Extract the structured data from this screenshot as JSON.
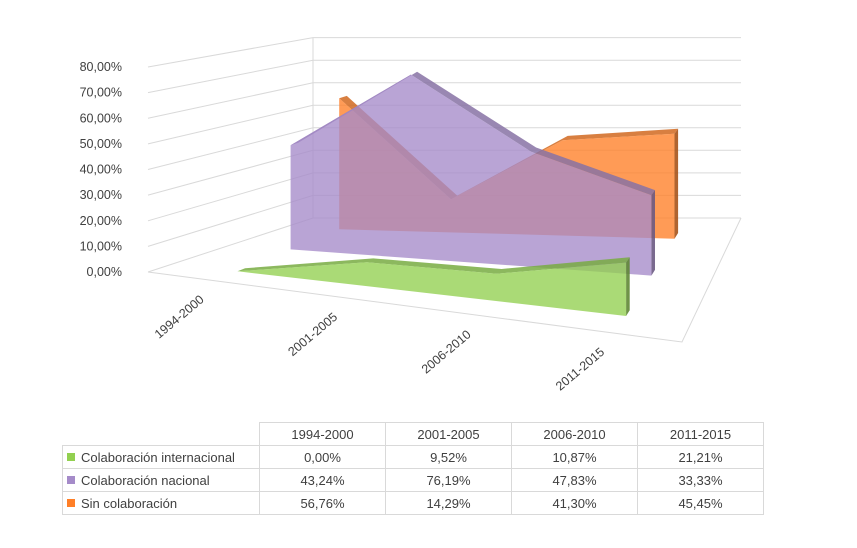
{
  "chart_data": {
    "type": "area",
    "categories": [
      "1994-2000",
      "2001-2005",
      "2006-2010",
      "2011-2015"
    ],
    "y_ticks": [
      "0,00%",
      "10,00%",
      "20,00%",
      "30,00%",
      "40,00%",
      "50,00%",
      "60,00%",
      "70,00%",
      "80,00%"
    ],
    "ylim": [
      0,
      80
    ],
    "grid": true,
    "legend": "data-table",
    "series": [
      {
        "name": "Colaboración internacional",
        "color": "#92d050",
        "values": [
          0.0,
          9.52,
          10.87,
          21.21
        ],
        "labels": [
          "0,00%",
          "9,52%",
          "10,87%",
          "21,21%"
        ]
      },
      {
        "name": "Colaboración nacional",
        "color": "#a58bc9",
        "values": [
          43.24,
          76.19,
          47.83,
          33.33
        ],
        "labels": [
          "43,24%",
          "76,19%",
          "47,83%",
          "33,33%"
        ]
      },
      {
        "name": "Sin colaboración",
        "color": "#ff7f27",
        "values": [
          56.76,
          14.29,
          41.3,
          45.45
        ],
        "labels": [
          "56,76%",
          "14,29%",
          "41,30%",
          "45,45%"
        ]
      }
    ]
  }
}
